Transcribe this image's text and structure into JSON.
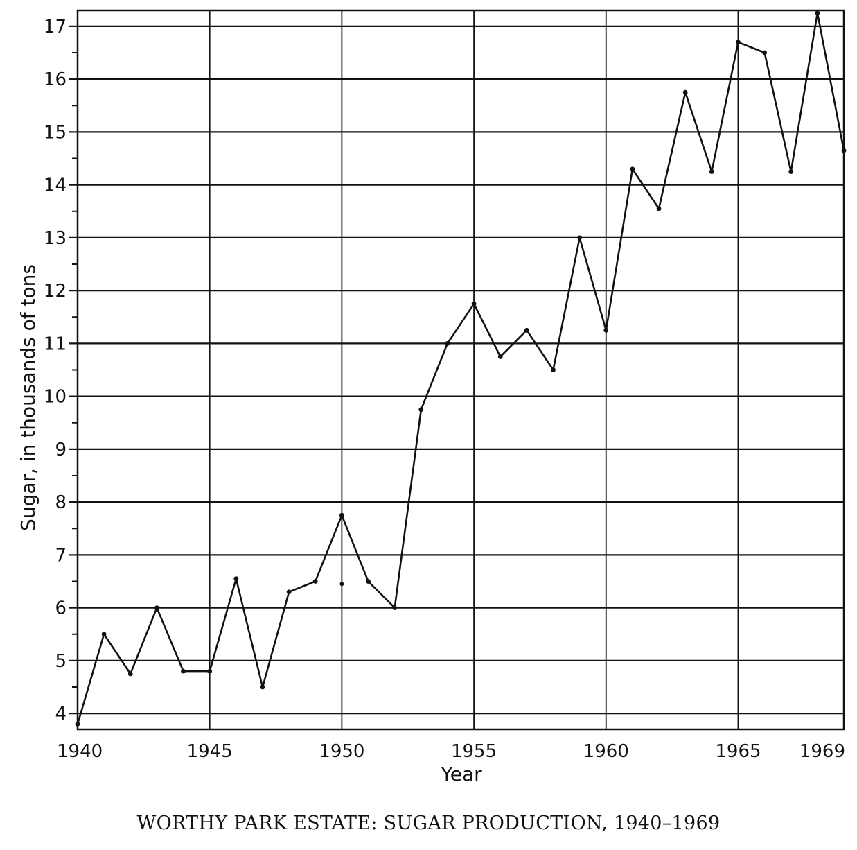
{
  "caption": "WORTHY PARK ESTATE: SUGAR PRODUCTION, 1940–1969",
  "chart_data": {
    "type": "line",
    "title": "",
    "xlabel": "Year",
    "ylabel": "Sugar, in thousands of tons",
    "xlim": [
      1940,
      1969
    ],
    "ylim": [
      3.7,
      17.3
    ],
    "x_ticks": [
      {
        "value": 1940,
        "label": "1940"
      },
      {
        "value": 1945,
        "label": "1945"
      },
      {
        "value": 1950,
        "label": "1950"
      },
      {
        "value": 1955,
        "label": "1955"
      },
      {
        "value": 1960,
        "label": "1960"
      },
      {
        "value": 1965,
        "label": "1965"
      },
      {
        "value": 1969,
        "label": "1969"
      }
    ],
    "y_ticks": [
      {
        "value": 4,
        "label": "4"
      },
      {
        "value": 5,
        "label": "5"
      },
      {
        "value": 6,
        "label": "6"
      },
      {
        "value": 7,
        "label": "7"
      },
      {
        "value": 8,
        "label": "8"
      },
      {
        "value": 9,
        "label": "9"
      },
      {
        "value": 10,
        "label": "10"
      },
      {
        "value": 11,
        "label": "11"
      },
      {
        "value": 12,
        "label": "12"
      },
      {
        "value": 13,
        "label": "13"
      },
      {
        "value": 14,
        "label": "14"
      },
      {
        "value": 15,
        "label": "15"
      },
      {
        "value": 16,
        "label": "16"
      },
      {
        "value": 17,
        "label": "17"
      }
    ],
    "y_minor_step": 0.5,
    "grid": true,
    "series": [
      {
        "x": [
          1940,
          1941,
          1942,
          1943,
          1944,
          1945,
          1946,
          1947,
          1948,
          1949,
          1950,
          1951,
          1952,
          1953,
          1954,
          1955,
          1956,
          1957,
          1958,
          1959,
          1960,
          1961,
          1962,
          1963,
          1964,
          1965,
          1966,
          1967,
          1968,
          1969
        ],
        "values": [
          3.8,
          5.5,
          4.75,
          6.0,
          4.8,
          4.8,
          6.55,
          4.5,
          6.3,
          6.5,
          7.75,
          6.5,
          6.0,
          9.75,
          11.0,
          11.75,
          10.75,
          11.25,
          10.5,
          13.0,
          11.25,
          14.3,
          13.55,
          15.75,
          14.25,
          16.7,
          16.5,
          14.25,
          17.25,
          14.65
        ]
      }
    ],
    "extra_points": [
      {
        "x": 1950,
        "y": 6.45
      }
    ]
  }
}
